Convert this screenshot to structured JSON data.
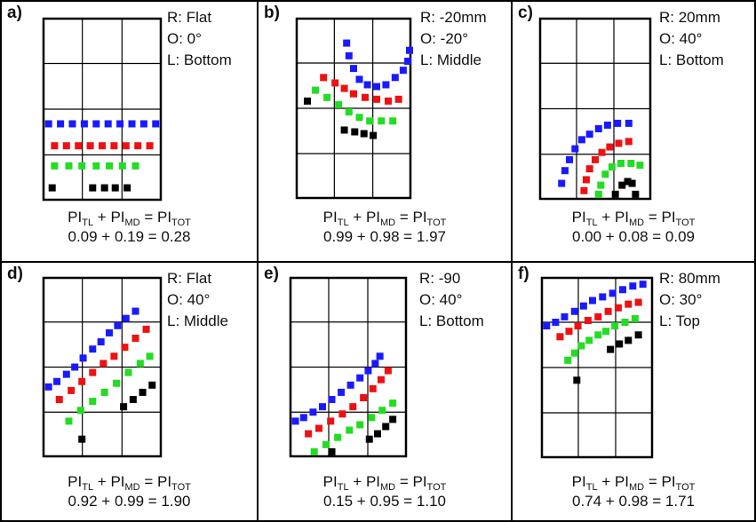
{
  "colors": {
    "top": "#1a1aff",
    "red": "#ee1111",
    "green": "#22dd22",
    "black": "#000000",
    "border": "#000000"
  },
  "formula_parts": {
    "pi": "PI",
    "tl": "TL",
    "md": "MD",
    "tot": "TOT",
    "plus": " + ",
    "equals": " = "
  },
  "panels": [
    {
      "letter": "a)",
      "r": "R: Flat",
      "o": "O: 0°",
      "l": "L: Bottom",
      "values": "0.09 + 0.19 = 0.28",
      "points": {
        "blue": [
          [
            0.05,
            0.58
          ],
          [
            0.15,
            0.58
          ],
          [
            0.25,
            0.58
          ],
          [
            0.35,
            0.58
          ],
          [
            0.45,
            0.58
          ],
          [
            0.55,
            0.58
          ],
          [
            0.65,
            0.58
          ],
          [
            0.75,
            0.58
          ],
          [
            0.85,
            0.58
          ],
          [
            0.95,
            0.58
          ]
        ],
        "red": [
          [
            0.1,
            0.7
          ],
          [
            0.2,
            0.7
          ],
          [
            0.3,
            0.7
          ],
          [
            0.4,
            0.7
          ],
          [
            0.5,
            0.7
          ],
          [
            0.6,
            0.7
          ],
          [
            0.7,
            0.7
          ],
          [
            0.8,
            0.7
          ],
          [
            0.9,
            0.7
          ]
        ],
        "green": [
          [
            0.1,
            0.81
          ],
          [
            0.22,
            0.81
          ],
          [
            0.33,
            0.81
          ],
          [
            0.45,
            0.81
          ],
          [
            0.56,
            0.81
          ],
          [
            0.67,
            0.81
          ],
          [
            0.78,
            0.81
          ]
        ],
        "black": [
          [
            0.08,
            0.93
          ],
          [
            0.42,
            0.93
          ],
          [
            0.52,
            0.93
          ],
          [
            0.61,
            0.93
          ],
          [
            0.71,
            0.93
          ]
        ]
      }
    },
    {
      "letter": "b)",
      "r": "R: -20mm",
      "o": "O: -20°",
      "l": "L: Middle",
      "values": "0.99 + 0.98 = 1.97",
      "points": {
        "blue": [
          [
            0.44,
            0.14
          ],
          [
            0.46,
            0.21
          ],
          [
            0.5,
            0.28
          ],
          [
            0.55,
            0.34
          ],
          [
            0.62,
            0.37
          ],
          [
            0.7,
            0.38
          ],
          [
            0.78,
            0.37
          ],
          [
            0.86,
            0.33
          ],
          [
            0.93,
            0.29
          ],
          [
            0.97,
            0.24
          ],
          [
            1.0,
            0.18
          ]
        ],
        "red": [
          [
            0.24,
            0.33
          ],
          [
            0.34,
            0.36
          ],
          [
            0.42,
            0.39
          ],
          [
            0.5,
            0.42
          ],
          [
            0.6,
            0.44
          ],
          [
            0.7,
            0.45
          ],
          [
            0.8,
            0.46
          ],
          [
            0.89,
            0.45
          ]
        ],
        "green": [
          [
            0.17,
            0.4
          ],
          [
            0.27,
            0.44
          ],
          [
            0.37,
            0.48
          ],
          [
            0.46,
            0.52
          ],
          [
            0.55,
            0.55
          ],
          [
            0.64,
            0.57
          ],
          [
            0.74,
            0.57
          ],
          [
            0.84,
            0.57
          ]
        ],
        "black": [
          [
            0.1,
            0.46
          ],
          [
            0.42,
            0.62
          ],
          [
            0.51,
            0.63
          ],
          [
            0.59,
            0.64
          ],
          [
            0.67,
            0.65
          ]
        ]
      }
    },
    {
      "letter": "c)",
      "r": "R: 20mm",
      "o": "O: 40°",
      "l": "L: Bottom",
      "values": "0.00 + 0.08 = 0.09",
      "points": {
        "blue": [
          [
            0.2,
            0.91
          ],
          [
            0.23,
            0.84
          ],
          [
            0.27,
            0.78
          ],
          [
            0.32,
            0.72
          ],
          [
            0.38,
            0.67
          ],
          [
            0.45,
            0.64
          ],
          [
            0.53,
            0.61
          ],
          [
            0.61,
            0.59
          ],
          [
            0.7,
            0.58
          ],
          [
            0.8,
            0.58
          ]
        ],
        "red": [
          [
            0.4,
            0.95
          ],
          [
            0.42,
            0.89
          ],
          [
            0.45,
            0.83
          ],
          [
            0.5,
            0.78
          ],
          [
            0.56,
            0.74
          ],
          [
            0.63,
            0.71
          ],
          [
            0.71,
            0.69
          ],
          [
            0.8,
            0.68
          ]
        ],
        "green": [
          [
            0.53,
            0.97
          ],
          [
            0.55,
            0.92
          ],
          [
            0.59,
            0.86
          ],
          [
            0.65,
            0.82
          ],
          [
            0.73,
            0.8
          ],
          [
            0.82,
            0.8
          ],
          [
            0.9,
            0.81
          ]
        ],
        "black": [
          [
            0.68,
            0.97
          ],
          [
            0.74,
            0.92
          ],
          [
            0.79,
            0.9
          ],
          [
            0.83,
            0.91
          ],
          [
            0.86,
            0.97
          ]
        ]
      }
    },
    {
      "letter": "d)",
      "r": "R: Flat",
      "o": "O: 40°",
      "l": "L: Middle",
      "values": "0.92 + 0.99 = 1.90",
      "points": {
        "blue": [
          [
            0.05,
            0.61
          ],
          [
            0.12,
            0.58
          ],
          [
            0.2,
            0.54
          ],
          [
            0.27,
            0.5
          ],
          [
            0.34,
            0.45
          ],
          [
            0.42,
            0.4
          ],
          [
            0.49,
            0.36
          ],
          [
            0.56,
            0.31
          ],
          [
            0.63,
            0.27
          ],
          [
            0.7,
            0.23
          ],
          [
            0.78,
            0.19
          ]
        ],
        "red": [
          [
            0.14,
            0.68
          ],
          [
            0.24,
            0.63
          ],
          [
            0.33,
            0.58
          ],
          [
            0.42,
            0.53
          ],
          [
            0.51,
            0.48
          ],
          [
            0.6,
            0.44
          ],
          [
            0.69,
            0.39
          ],
          [
            0.78,
            0.34
          ],
          [
            0.87,
            0.29
          ]
        ],
        "green": [
          [
            0.22,
            0.8
          ],
          [
            0.32,
            0.74
          ],
          [
            0.42,
            0.69
          ],
          [
            0.52,
            0.64
          ],
          [
            0.62,
            0.59
          ],
          [
            0.72,
            0.53
          ],
          [
            0.82,
            0.48
          ],
          [
            0.9,
            0.44
          ]
        ],
        "black": [
          [
            0.33,
            0.9
          ],
          [
            0.68,
            0.72
          ],
          [
            0.76,
            0.68
          ],
          [
            0.84,
            0.64
          ],
          [
            0.92,
            0.6
          ]
        ]
      }
    },
    {
      "letter": "e)",
      "r": "R: -90",
      "o": "O: 40°",
      "l": "L: Bottom",
      "values": "0.15 + 0.95 = 1.10",
      "points": {
        "blue": [
          [
            0.05,
            0.8
          ],
          [
            0.12,
            0.78
          ],
          [
            0.2,
            0.75
          ],
          [
            0.28,
            0.72
          ],
          [
            0.36,
            0.68
          ],
          [
            0.44,
            0.64
          ],
          [
            0.52,
            0.6
          ],
          [
            0.6,
            0.56
          ],
          [
            0.67,
            0.52
          ],
          [
            0.73,
            0.48
          ],
          [
            0.77,
            0.44
          ]
        ],
        "red": [
          [
            0.16,
            0.87
          ],
          [
            0.25,
            0.84
          ],
          [
            0.35,
            0.8
          ],
          [
            0.45,
            0.76
          ],
          [
            0.54,
            0.72
          ],
          [
            0.63,
            0.67
          ],
          [
            0.71,
            0.62
          ],
          [
            0.78,
            0.57
          ],
          [
            0.84,
            0.52
          ]
        ],
        "green": [
          [
            0.21,
            0.97
          ],
          [
            0.31,
            0.93
          ],
          [
            0.41,
            0.89
          ],
          [
            0.51,
            0.85
          ],
          [
            0.6,
            0.82
          ],
          [
            0.7,
            0.78
          ],
          [
            0.79,
            0.74
          ],
          [
            0.88,
            0.7
          ]
        ],
        "black": [
          [
            0.36,
            0.97
          ],
          [
            0.68,
            0.9
          ],
          [
            0.75,
            0.87
          ],
          [
            0.82,
            0.83
          ],
          [
            0.88,
            0.79
          ]
        ]
      }
    },
    {
      "letter": "f)",
      "r": "R: 80mm",
      "o": "O: 30°",
      "l": "L: Top",
      "values": "0.74 + 0.98 = 1.71",
      "points": {
        "blue": [
          [
            0.05,
            0.27
          ],
          [
            0.13,
            0.25
          ],
          [
            0.21,
            0.22
          ],
          [
            0.3,
            0.19
          ],
          [
            0.38,
            0.16
          ],
          [
            0.46,
            0.13
          ],
          [
            0.55,
            0.11
          ],
          [
            0.64,
            0.09
          ],
          [
            0.73,
            0.07
          ],
          [
            0.82,
            0.05
          ],
          [
            0.91,
            0.04
          ]
        ],
        "red": [
          [
            0.17,
            0.33
          ],
          [
            0.25,
            0.3
          ],
          [
            0.33,
            0.27
          ],
          [
            0.42,
            0.24
          ],
          [
            0.51,
            0.22
          ],
          [
            0.6,
            0.19
          ],
          [
            0.69,
            0.17
          ],
          [
            0.78,
            0.15
          ],
          [
            0.87,
            0.14
          ]
        ],
        "green": [
          [
            0.24,
            0.46
          ],
          [
            0.3,
            0.42
          ],
          [
            0.36,
            0.38
          ],
          [
            0.43,
            0.35
          ],
          [
            0.51,
            0.32
          ],
          [
            0.58,
            0.3
          ],
          [
            0.66,
            0.27
          ],
          [
            0.75,
            0.25
          ],
          [
            0.84,
            0.23
          ]
        ],
        "black": [
          [
            0.32,
            0.57
          ],
          [
            0.62,
            0.4
          ],
          [
            0.7,
            0.37
          ],
          [
            0.78,
            0.35
          ],
          [
            0.87,
            0.32
          ]
        ]
      }
    }
  ]
}
